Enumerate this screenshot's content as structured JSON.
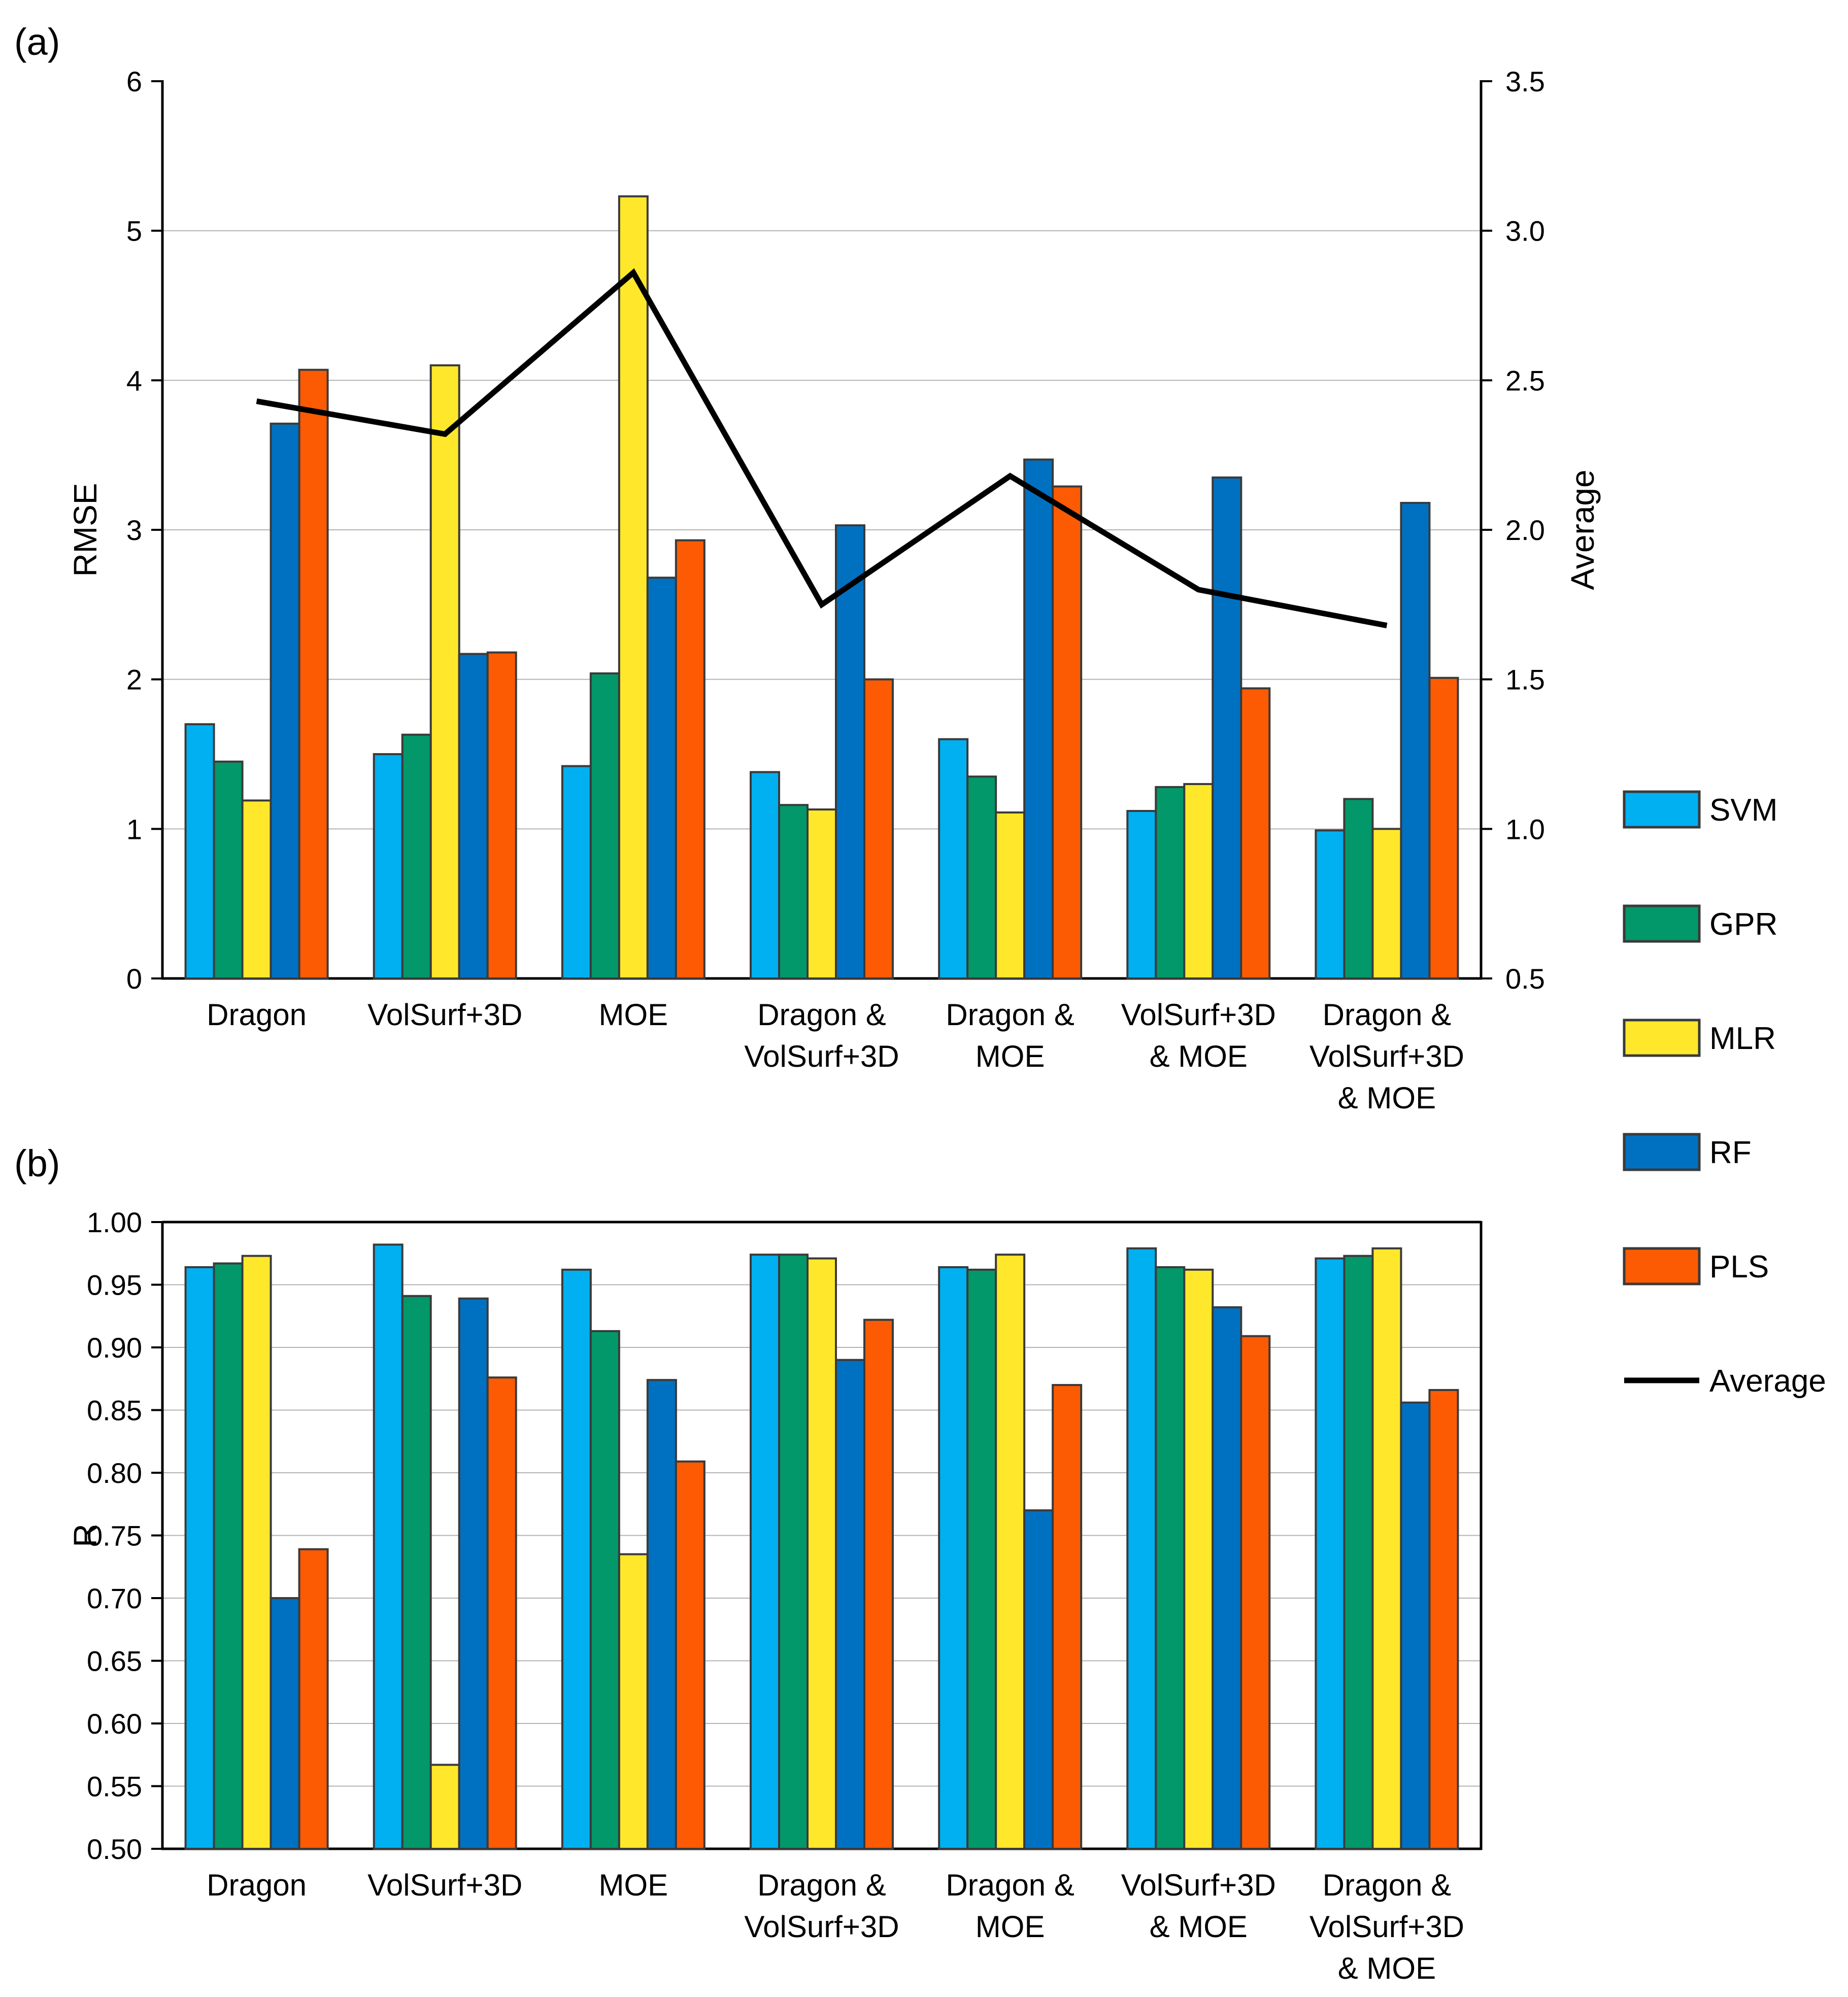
{
  "panel_a_label": "(a)",
  "panel_b_label": "(b)",
  "legend": [
    {
      "name": "SVM",
      "color": "#00b0f0",
      "kind": "bar"
    },
    {
      "name": "GPR",
      "color": "#039869",
      "kind": "bar"
    },
    {
      "name": "MLR",
      "color": "#ffe82b",
      "kind": "bar"
    },
    {
      "name": "RF",
      "color": "#0071c1",
      "kind": "bar"
    },
    {
      "name": "PLS",
      "color": "#fc5b04",
      "kind": "bar"
    },
    {
      "name": "Average",
      "color": "#000000",
      "kind": "line"
    }
  ],
  "chart_data": [
    {
      "type": "bar",
      "title": "",
      "panel": "(a)",
      "ylabel": "RMSE",
      "y2label": "Average",
      "ylim": [
        0,
        6
      ],
      "yticks": [
        "0",
        "1",
        "2",
        "3",
        "4",
        "5",
        "6"
      ],
      "y2lim": [
        0.5,
        3.5
      ],
      "y2ticks": [
        "0.5",
        "1.0",
        "1.5",
        "2.0",
        "2.5",
        "3.0",
        "3.5"
      ],
      "categories": [
        [
          "Dragon"
        ],
        [
          "VolSurf+3D"
        ],
        [
          "MOE"
        ],
        [
          "Dragon &",
          "VolSurf+3D"
        ],
        [
          "Dragon &",
          "MOE"
        ],
        [
          "VolSurf+3D",
          "& MOE"
        ],
        [
          "Dragon &",
          "VolSurf+3D",
          "& MOE"
        ]
      ],
      "series": [
        {
          "name": "SVM",
          "values": [
            1.7,
            1.5,
            1.42,
            1.38,
            1.6,
            1.12,
            0.99
          ]
        },
        {
          "name": "GPR",
          "values": [
            1.45,
            1.63,
            2.04,
            1.16,
            1.35,
            1.28,
            1.2
          ]
        },
        {
          "name": "MLR",
          "values": [
            1.19,
            4.1,
            5.23,
            1.13,
            1.11,
            1.3,
            1.0
          ]
        },
        {
          "name": "RF",
          "values": [
            3.71,
            2.17,
            2.68,
            3.03,
            3.47,
            3.35,
            3.18
          ]
        },
        {
          "name": "PLS",
          "values": [
            4.07,
            2.18,
            2.93,
            2.0,
            3.29,
            1.94,
            2.01
          ]
        }
      ],
      "line": {
        "name": "Average",
        "axis": "right",
        "values": [
          2.43,
          2.32,
          2.86,
          1.75,
          2.18,
          1.8,
          1.68
        ]
      }
    },
    {
      "type": "bar",
      "title": "",
      "panel": "(b)",
      "ylabel": "R",
      "ylim": [
        0.5,
        1.0
      ],
      "yticks": [
        "0.50",
        "0.55",
        "0.60",
        "0.65",
        "0.70",
        "0.75",
        "0.80",
        "0.85",
        "0.90",
        "0.95",
        "1.00"
      ],
      "categories": [
        [
          "Dragon"
        ],
        [
          "VolSurf+3D"
        ],
        [
          "MOE"
        ],
        [
          "Dragon &",
          "VolSurf+3D"
        ],
        [
          "Dragon &",
          "MOE"
        ],
        [
          "VolSurf+3D",
          "& MOE"
        ],
        [
          "Dragon &",
          "VolSurf+3D",
          "& MOE"
        ]
      ],
      "series": [
        {
          "name": "SVM",
          "values": [
            0.964,
            0.982,
            0.962,
            0.974,
            0.964,
            0.979,
            0.971
          ]
        },
        {
          "name": "GPR",
          "values": [
            0.967,
            0.941,
            0.913,
            0.974,
            0.962,
            0.964,
            0.973
          ]
        },
        {
          "name": "MLR",
          "values": [
            0.973,
            0.567,
            0.735,
            0.971,
            0.974,
            0.962,
            0.979
          ]
        },
        {
          "name": "RF",
          "values": [
            0.7,
            0.939,
            0.874,
            0.89,
            0.77,
            0.932,
            0.856
          ]
        },
        {
          "name": "PLS",
          "values": [
            0.739,
            0.876,
            0.809,
            0.922,
            0.87,
            0.909,
            0.866
          ]
        }
      ]
    }
  ]
}
